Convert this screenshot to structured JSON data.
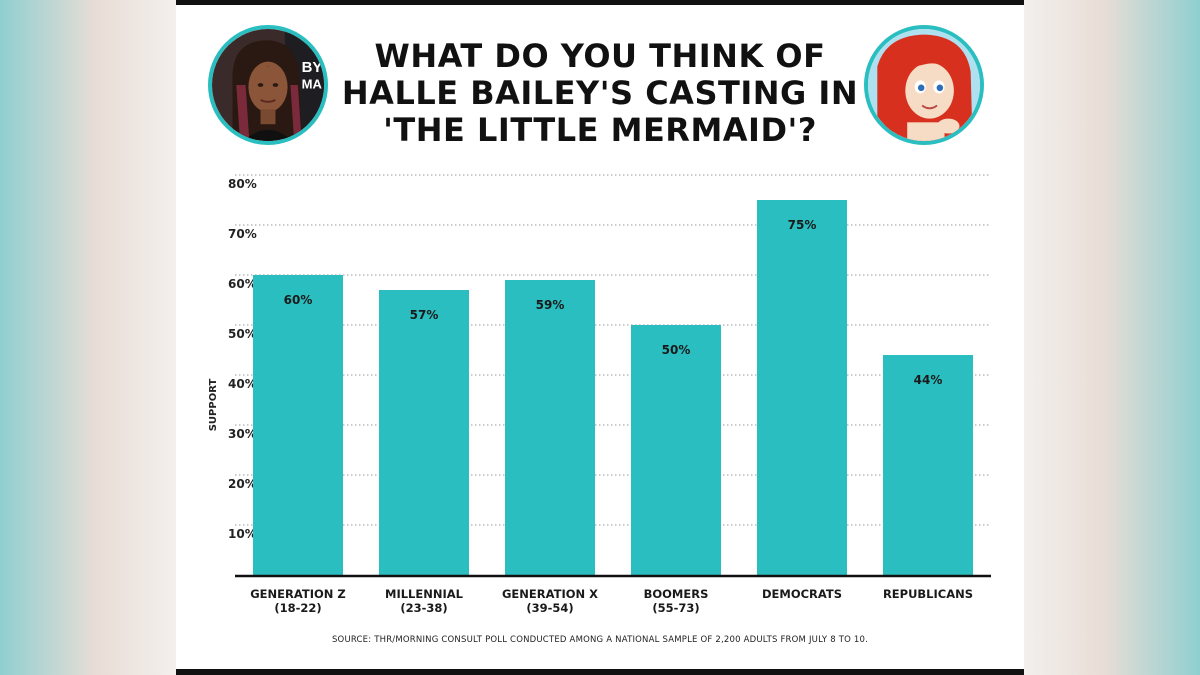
{
  "chart_data": {
    "type": "bar",
    "title_lines": [
      "WHAT DO YOU THINK OF",
      "HALLE BAILEY'S CASTING IN",
      "'THE LITTLE MERMAID'?"
    ],
    "ylabel": "SUPPORT",
    "xlabel": "",
    "ylim": [
      0,
      80
    ],
    "yticks": [
      10,
      20,
      30,
      40,
      50,
      60,
      70,
      80
    ],
    "ytick_labels": [
      "10%",
      "20%",
      "30%",
      "40%",
      "50%",
      "60%",
      "70%",
      "80%"
    ],
    "grid": "dotted horizontal",
    "categories": [
      {
        "line1": "GENERATION Z",
        "line2": "(18-22)"
      },
      {
        "line1": "MILLENNIAL",
        "line2": "(23-38)"
      },
      {
        "line1": "GENERATION X",
        "line2": "(39-54)"
      },
      {
        "line1": "BOOMERS",
        "line2": "(55-73)"
      },
      {
        "line1": "DEMOCRATS",
        "line2": ""
      },
      {
        "line1": "REPUBLICANS",
        "line2": ""
      }
    ],
    "values": [
      60,
      57,
      59,
      50,
      75,
      44
    ],
    "value_labels": [
      "60%",
      "57%",
      "59%",
      "50%",
      "75%",
      "44%"
    ],
    "bar_color": "#2bbec0"
  },
  "source_text": "SOURCE: THR/MORNING CONSULT POLL CONDUCTED AMONG A NATIONAL SAMPLE OF 2,200 ADULTS FROM JULY 8 TO 10.",
  "colors": {
    "accent": "#2bbec0",
    "text": "#111111",
    "frame": "#111111"
  },
  "images": {
    "left": "portrait-photo",
    "right": "cartoon-mermaid-illustration"
  }
}
